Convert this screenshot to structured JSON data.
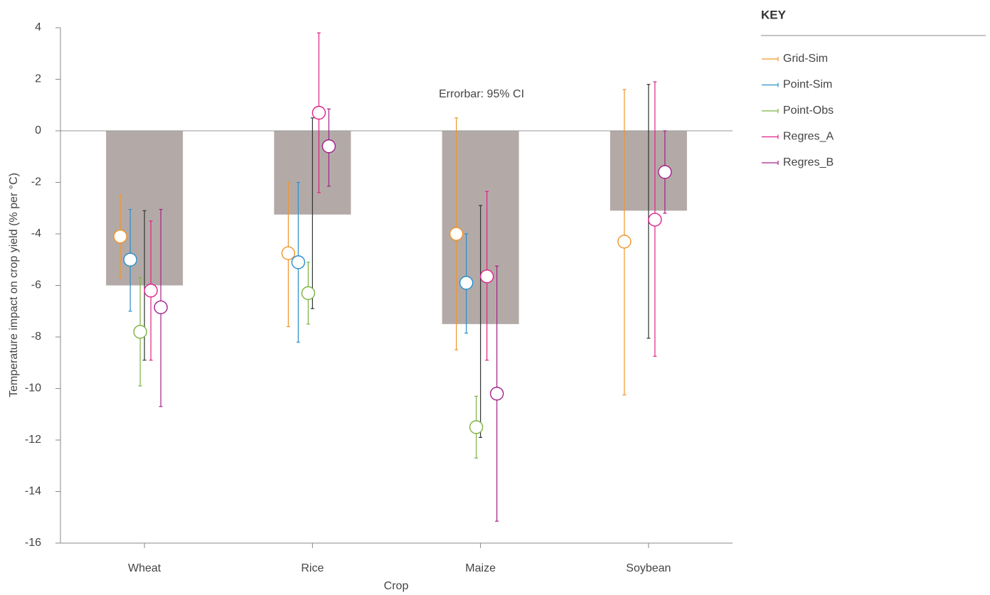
{
  "chart_data": {
    "type": "bar",
    "y_label": "Temperature impact on crop yield (% per °C)",
    "x_label": "Crop",
    "annotation": "Errorbar: 95% CI",
    "legend_title": "KEY",
    "legend": "right",
    "categories": [
      "Wheat",
      "Rice",
      "Maize",
      "Soybean"
    ],
    "values": [
      -6,
      -3.25,
      -7.5,
      -3.1
    ],
    "lower": [
      -8.9,
      -6.9,
      -11.9,
      -8.05
    ],
    "upper": [
      -3.1,
      0.5,
      -2.9,
      1.8
    ],
    "color": "#b3aaa7",
    "error_color": "#333333",
    "series": [
      {
        "name": "Grid-Sim",
        "color": "#f0962a",
        "values": [
          -4.1,
          -4.75,
          -4.0,
          -4.3
        ],
        "lower": [
          -5.7,
          -7.6,
          -8.5,
          -10.25
        ],
        "upper": [
          -2.5,
          -2.0,
          0.5,
          1.6
        ]
      },
      {
        "name": "Point-Sim",
        "color": "#2a8fcb",
        "values": [
          -5.0,
          -5.1,
          -5.9,
          null
        ],
        "lower": [
          -7.0,
          -8.2,
          -7.85,
          null
        ],
        "upper": [
          -3.05,
          -2.0,
          -4.0,
          null
        ]
      },
      {
        "name": "Point-Obs",
        "color": "#7cb342",
        "values": [
          -7.8,
          -6.3,
          -11.5,
          null
        ],
        "lower": [
          -9.9,
          -7.5,
          -12.7,
          null
        ],
        "upper": [
          -5.7,
          -5.1,
          -10.3,
          null
        ]
      },
      {
        "name": "Regres_A",
        "color": "#e0218a",
        "values": [
          -6.2,
          0.7,
          -5.65,
          -3.45
        ],
        "lower": [
          -8.9,
          -2.4,
          -8.9,
          -8.75
        ],
        "upper": [
          -3.5,
          3.8,
          -2.35,
          1.9
        ]
      },
      {
        "name": "Regres_B",
        "color": "#a3208a",
        "values": [
          -6.85,
          -0.6,
          -10.2,
          -1.6
        ],
        "lower": [
          -10.7,
          -2.15,
          -15.15,
          -3.2
        ],
        "upper": [
          -3.05,
          0.85,
          -5.25,
          0.0
        ]
      }
    ],
    "ylim": [
      -16,
      4
    ],
    "yticks": [
      -16,
      -14,
      -12,
      -10,
      -8,
      -6,
      -4,
      -2,
      0,
      2,
      4
    ]
  }
}
